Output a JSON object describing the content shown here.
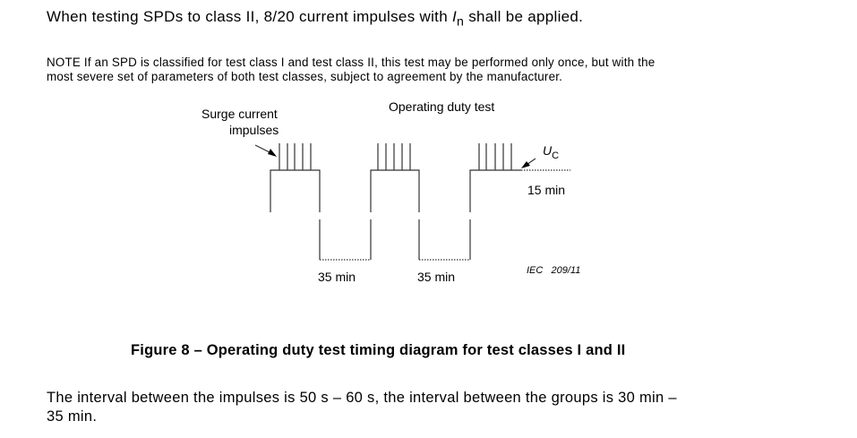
{
  "paragraph1": {
    "before": "When testing SPDs to class II, 8/20 current impulses with ",
    "symbol": "I",
    "subscript": "n",
    "after": " shall be applied."
  },
  "note": {
    "line1": "NOTE  If an SPD is classified for test class I and test class II, this test may be performed only once, but with the",
    "line2": "most severe set of parameters of both test classes, subject to agreement by the manufacturer."
  },
  "diagram": {
    "label_impulses_1": "Surge current",
    "label_impulses_2": "impulses",
    "title": "Operating duty test",
    "uc_symbol": "U",
    "uc_subscript": "C",
    "duration_15": "15 min",
    "gap_1": "35 min",
    "gap_2": "35 min",
    "reference": "IEC   209/11"
  },
  "caption": "Figure 8 – Operating duty test timing diagram for test classes I and II",
  "paragraph2": {
    "line1": "The interval between the impulses is 50 s – 60 s, the interval between the groups is 30 min –",
    "line2": "35 min."
  }
}
